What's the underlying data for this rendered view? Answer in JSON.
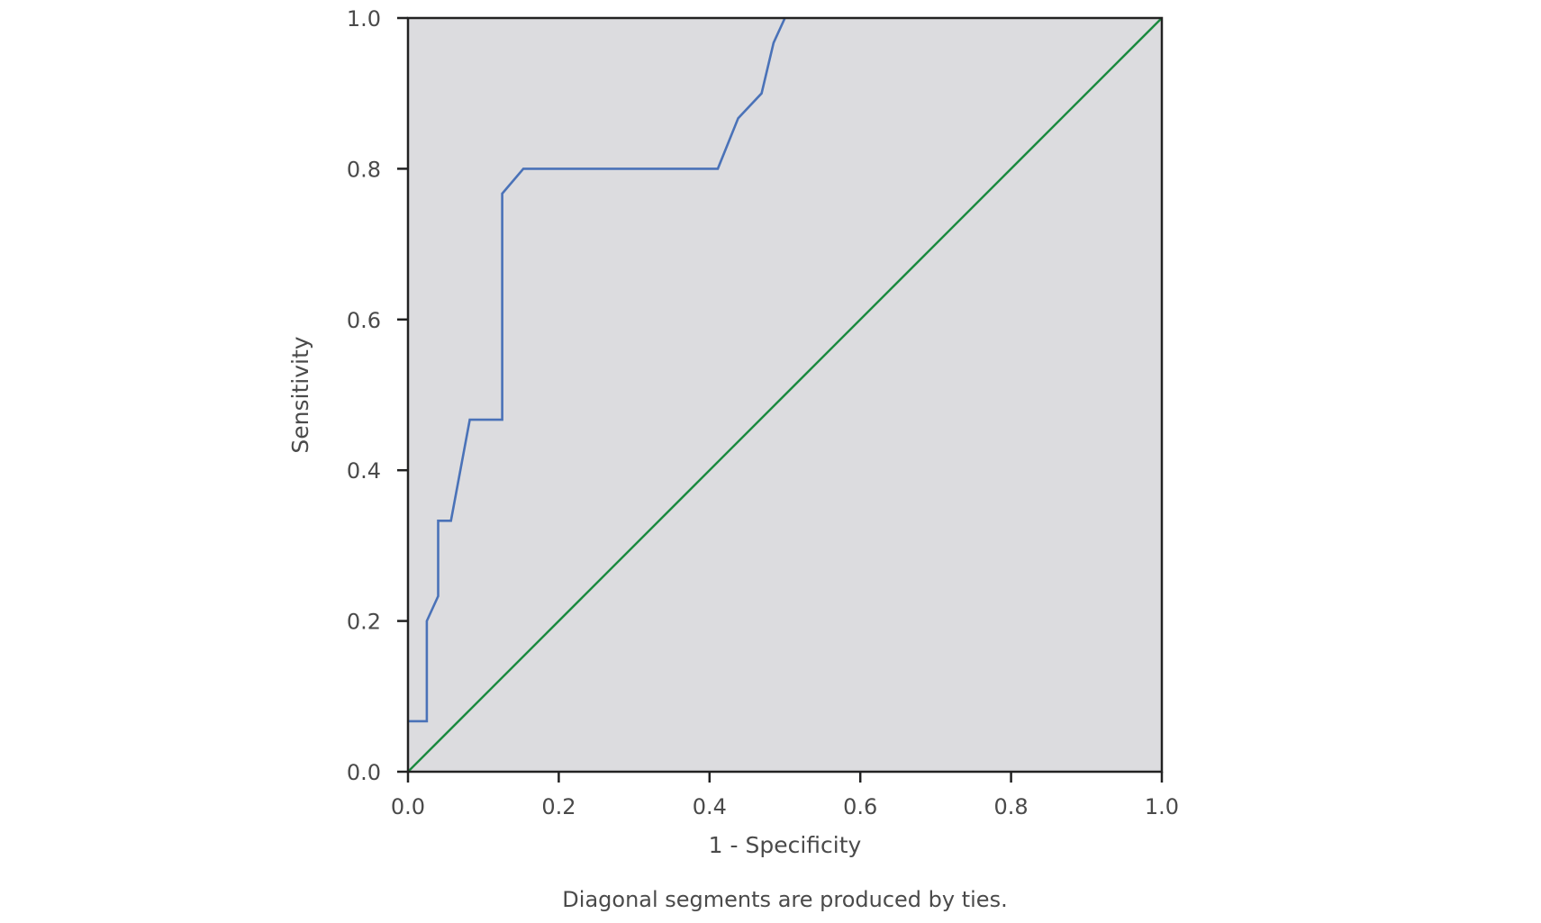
{
  "chart_data": {
    "type": "line",
    "xlabel": "1 - Specificity",
    "ylabel": "Sensitivity",
    "xlim": [
      0,
      1
    ],
    "ylim": [
      0,
      1
    ],
    "x_ticks": [
      "0.0",
      "0.2",
      "0.4",
      "0.6",
      "0.8",
      "1.0"
    ],
    "y_ticks": [
      "0.0",
      "0.2",
      "0.4",
      "0.6",
      "0.8",
      "1.0"
    ],
    "grid": false,
    "plot_background": "#dcdcdf",
    "series": [
      {
        "color": "#4a72b8",
        "x": [
          0.0,
          0.025,
          0.025,
          0.04,
          0.04,
          0.057,
          0.082,
          0.125,
          0.125,
          0.153,
          0.411,
          0.438,
          0.469,
          0.485,
          0.5
        ],
        "y": [
          0.067,
          0.067,
          0.2,
          0.233,
          0.333,
          0.333,
          0.467,
          0.467,
          0.767,
          0.8,
          0.8,
          0.867,
          0.9,
          0.967,
          1.0
        ]
      },
      {
        "color": "#1a8a3f",
        "x": [
          0,
          1
        ],
        "y": [
          0,
          1
        ]
      }
    ],
    "footnote": "Diagonal segments are produced by ties."
  }
}
